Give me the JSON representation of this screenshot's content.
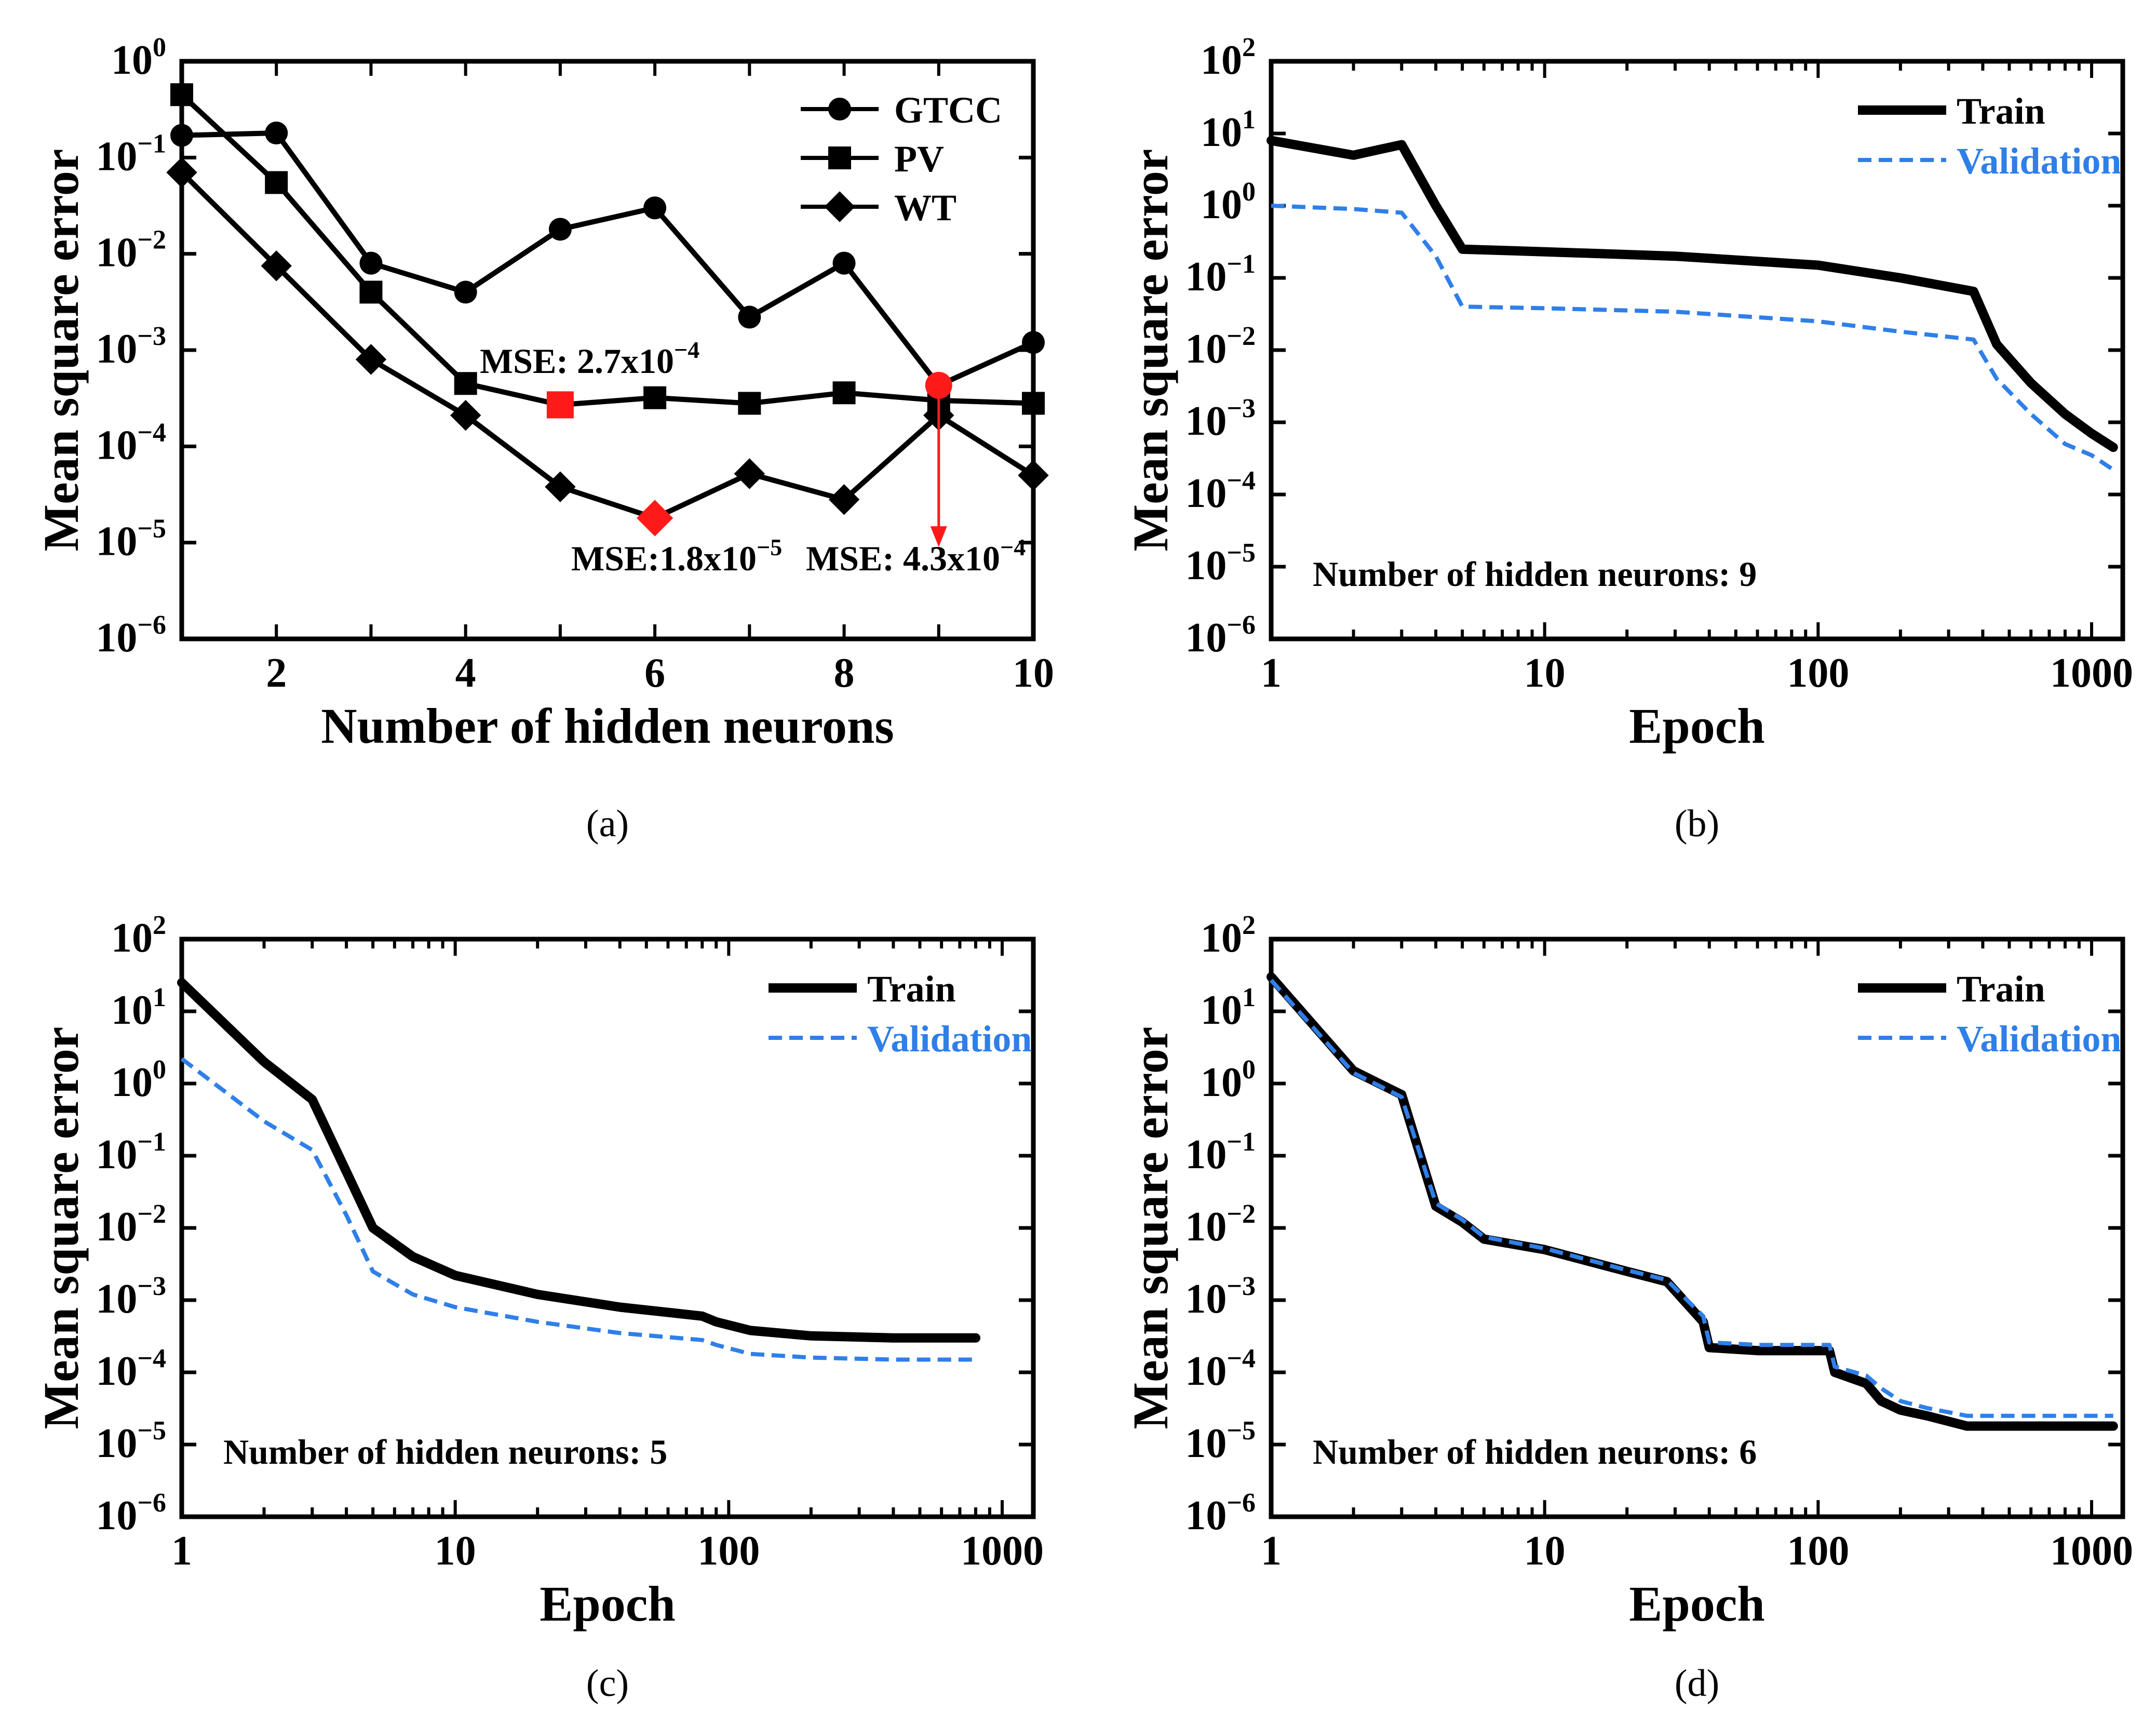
{
  "chart_data": [
    {
      "id": "a",
      "type": "line",
      "caption": "(a)",
      "xlabel": "Number of hidden neurons",
      "ylabel": "Mean square error",
      "xscale": "linear",
      "yscale": "log",
      "xlim": [
        1,
        10
      ],
      "ylim": [
        1e-06,
        1
      ],
      "xticks": [
        {
          "v": 2,
          "label": "2"
        },
        {
          "v": 4,
          "label": "4"
        },
        {
          "v": 6,
          "label": "6"
        },
        {
          "v": 8,
          "label": "8"
        },
        {
          "v": 10,
          "label": "10"
        }
      ],
      "yticks": [
        {
          "e": 0,
          "base": "10",
          "exp": "0"
        },
        {
          "e": -1,
          "base": "10",
          "exp": "−1"
        },
        {
          "e": -2,
          "base": "10",
          "exp": "−2"
        },
        {
          "e": -3,
          "base": "10",
          "exp": "−3"
        },
        {
          "e": -4,
          "base": "10",
          "exp": "−4"
        },
        {
          "e": -5,
          "base": "10",
          "exp": "−5"
        },
        {
          "e": -6,
          "base": "10",
          "exp": "−6"
        }
      ],
      "legend_position": "top-right",
      "series": [
        {
          "name": "GTCC",
          "marker": "circle",
          "color": "#000000",
          "style": "solid",
          "x": [
            1,
            2,
            3,
            4,
            5,
            6,
            7,
            8,
            9,
            10
          ],
          "y": [
            0.17,
            0.18,
            0.008,
            0.004,
            0.018,
            0.03,
            0.0022,
            0.008,
            0.00043,
            0.0012
          ]
        },
        {
          "name": "PV",
          "marker": "square",
          "color": "#000000",
          "style": "solid",
          "x": [
            1,
            2,
            3,
            4,
            5,
            6,
            7,
            8,
            9,
            10
          ],
          "y": [
            0.45,
            0.055,
            0.004,
            0.00045,
            0.00027,
            0.00032,
            0.00028,
            0.00036,
            0.0003,
            0.00028
          ]
        },
        {
          "name": "WT",
          "marker": "diamond",
          "color": "#000000",
          "style": "solid",
          "x": [
            1,
            2,
            3,
            4,
            5,
            6,
            7,
            8,
            9,
            10
          ],
          "y": [
            0.07,
            0.0075,
            0.0008,
            0.00021,
            3.8e-05,
            1.8e-05,
            5.2e-05,
            2.8e-05,
            0.00021,
            5e-05
          ]
        }
      ],
      "highlights": [
        {
          "series": "PV",
          "x": 5,
          "y": 0.00027,
          "marker": "square",
          "color": "#ff1a1a"
        },
        {
          "series": "WT",
          "x": 6,
          "y": 1.8e-05,
          "marker": "diamond",
          "color": "#ff1a1a"
        },
        {
          "series": "GTCC",
          "x": 9,
          "y": 0.00043,
          "marker": "circle",
          "color": "#ff1a1a"
        }
      ],
      "annotations": [
        {
          "id": "pv",
          "prefix": "MSE: 2.7x10",
          "exp": "−4"
        },
        {
          "id": "wt",
          "prefix": "MSE:1.8x10",
          "exp": "−5"
        },
        {
          "id": "gtcc",
          "prefix": "MSE: 4.3x10",
          "exp": "−4"
        }
      ],
      "arrow": {
        "x": 9,
        "from_y": 0.0004,
        "to_y": 9e-06,
        "color": "#ff1a1a"
      }
    },
    {
      "id": "b",
      "type": "line",
      "caption": "(b)",
      "xlabel": "Epoch",
      "ylabel": "Mean square error",
      "xscale": "log",
      "yscale": "log",
      "xlim": [
        1,
        1300
      ],
      "ylim": [
        1e-06,
        100
      ],
      "xticks": [
        {
          "v": 1,
          "label": "1"
        },
        {
          "v": 10,
          "label": "10"
        },
        {
          "v": 100,
          "label": "100"
        },
        {
          "v": 1000,
          "label": "1000"
        }
      ],
      "yticks": [
        {
          "e": 2,
          "base": "10",
          "exp": "2"
        },
        {
          "e": 1,
          "base": "10",
          "exp": "1"
        },
        {
          "e": 0,
          "base": "10",
          "exp": "0"
        },
        {
          "e": -1,
          "base": "10",
          "exp": "−1"
        },
        {
          "e": -2,
          "base": "10",
          "exp": "−2"
        },
        {
          "e": -3,
          "base": "10",
          "exp": "−3"
        },
        {
          "e": -4,
          "base": "10",
          "exp": "−4"
        },
        {
          "e": -5,
          "base": "10",
          "exp": "−5"
        },
        {
          "e": -6,
          "base": "10",
          "exp": "−6"
        }
      ],
      "legend_position": "top-right",
      "note": "Number of hidden neurons: 9",
      "series": [
        {
          "name": "Train",
          "color": "#000000",
          "style": "solid",
          "x": [
            1,
            2,
            3,
            4,
            5,
            10,
            30,
            100,
            200,
            370,
            450,
            600,
            800,
            1000,
            1200
          ],
          "y": [
            8,
            5,
            7,
            1,
            0.25,
            0.23,
            0.2,
            0.15,
            0.1,
            0.065,
            0.012,
            0.0035,
            0.0013,
            0.0007,
            0.00045
          ]
        },
        {
          "name": "Validation",
          "color": "#2f7fe8",
          "style": "dashed",
          "x": [
            1,
            2,
            3,
            4,
            5,
            10,
            30,
            100,
            200,
            370,
            450,
            600,
            800,
            1000,
            1200
          ],
          "y": [
            1,
            0.9,
            0.8,
            0.2,
            0.04,
            0.038,
            0.034,
            0.025,
            0.018,
            0.014,
            0.004,
            0.0013,
            0.0005,
            0.00035,
            0.00022
          ]
        }
      ]
    },
    {
      "id": "c",
      "type": "line",
      "caption": "(c)",
      "xlabel": "Epoch",
      "ylabel": "Mean square error",
      "xscale": "log",
      "yscale": "log",
      "xlim": [
        1,
        1300
      ],
      "ylim": [
        1e-06,
        100
      ],
      "xticks": [
        {
          "v": 1,
          "label": "1"
        },
        {
          "v": 10,
          "label": "10"
        },
        {
          "v": 100,
          "label": "100"
        },
        {
          "v": 1000,
          "label": "1000"
        }
      ],
      "yticks": [
        {
          "e": 2,
          "base": "10",
          "exp": "2"
        },
        {
          "e": 1,
          "base": "10",
          "exp": "1"
        },
        {
          "e": 0,
          "base": "10",
          "exp": "0"
        },
        {
          "e": -1,
          "base": "10",
          "exp": "−1"
        },
        {
          "e": -2,
          "base": "10",
          "exp": "−2"
        },
        {
          "e": -3,
          "base": "10",
          "exp": "−3"
        },
        {
          "e": -4,
          "base": "10",
          "exp": "−4"
        },
        {
          "e": -5,
          "base": "10",
          "exp": "−5"
        },
        {
          "e": -6,
          "base": "10",
          "exp": "−6"
        }
      ],
      "legend_position": "top-right",
      "note": "Number of hidden neurons: 5",
      "series": [
        {
          "name": "Train",
          "color": "#000000",
          "style": "solid",
          "x": [
            1,
            2,
            3,
            4,
            5,
            7,
            10,
            20,
            40,
            80,
            90,
            120,
            200,
            400,
            800
          ],
          "y": [
            25,
            2,
            0.6,
            0.06,
            0.01,
            0.004,
            0.0022,
            0.0012,
            0.0008,
            0.0006,
            0.0005,
            0.00038,
            0.00032,
            0.0003,
            0.0003
          ]
        },
        {
          "name": "Validation",
          "color": "#2f7fe8",
          "style": "dashed",
          "x": [
            1,
            2,
            3,
            4,
            5,
            7,
            10,
            20,
            40,
            80,
            90,
            120,
            200,
            400,
            800
          ],
          "y": [
            2.2,
            0.3,
            0.12,
            0.015,
            0.0025,
            0.0012,
            0.0008,
            0.0005,
            0.00035,
            0.00028,
            0.00024,
            0.00018,
            0.00016,
            0.00015,
            0.00015
          ]
        }
      ]
    },
    {
      "id": "d",
      "type": "line",
      "caption": "(d)",
      "xlabel": "Epoch",
      "ylabel": "Mean square error",
      "xscale": "log",
      "yscale": "log",
      "xlim": [
        1,
        1300
      ],
      "ylim": [
        1e-06,
        100
      ],
      "xticks": [
        {
          "v": 1,
          "label": "1"
        },
        {
          "v": 10,
          "label": "10"
        },
        {
          "v": 100,
          "label": "100"
        },
        {
          "v": 1000,
          "label": "1000"
        }
      ],
      "yticks": [
        {
          "e": 2,
          "base": "10",
          "exp": "2"
        },
        {
          "e": 1,
          "base": "10",
          "exp": "1"
        },
        {
          "e": 0,
          "base": "10",
          "exp": "0"
        },
        {
          "e": -1,
          "base": "10",
          "exp": "−1"
        },
        {
          "e": -2,
          "base": "10",
          "exp": "−2"
        },
        {
          "e": -3,
          "base": "10",
          "exp": "−3"
        },
        {
          "e": -4,
          "base": "10",
          "exp": "−4"
        },
        {
          "e": -5,
          "base": "10",
          "exp": "−5"
        },
        {
          "e": -6,
          "base": "10",
          "exp": "−6"
        }
      ],
      "legend_position": "top-right",
      "note": "Number of hidden neurons: 6",
      "series": [
        {
          "name": "Train",
          "color": "#000000",
          "style": "solid",
          "x": [
            1,
            2,
            3,
            4,
            5,
            6,
            10,
            20,
            28,
            38,
            40,
            60,
            110,
            115,
            150,
            170,
            200,
            250,
            350,
            1200
          ],
          "y": [
            30,
            1.5,
            0.7,
            0.02,
            0.012,
            0.007,
            0.005,
            0.0025,
            0.0018,
            0.0005,
            0.00022,
            0.0002,
            0.0002,
            0.0001,
            7e-05,
            4e-05,
            3e-05,
            2.5e-05,
            1.8e-05,
            1.8e-05
          ]
        },
        {
          "name": "Validation",
          "color": "#2f7fe8",
          "style": "dashed",
          "x": [
            1,
            2,
            3,
            4,
            5,
            6,
            10,
            20,
            28,
            38,
            40,
            60,
            110,
            115,
            150,
            170,
            200,
            250,
            350,
            1200
          ],
          "y": [
            27,
            1.4,
            0.65,
            0.022,
            0.013,
            0.0075,
            0.0052,
            0.0026,
            0.0019,
            0.0006,
            0.00026,
            0.00024,
            0.00024,
            0.00012,
            9e-05,
            6e-05,
            4e-05,
            3.2e-05,
            2.5e-05,
            2.5e-05
          ]
        }
      ]
    }
  ]
}
